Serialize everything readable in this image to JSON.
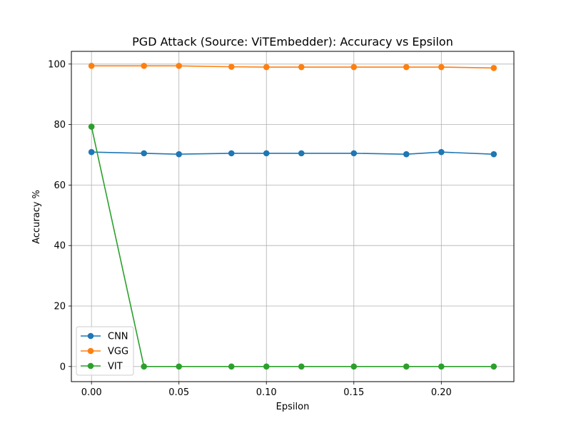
{
  "chart_data": {
    "type": "line",
    "title": "PGD Attack (Source: ViTEmbedder): Accuracy vs Epsilon",
    "xlabel": "Epsilon",
    "ylabel": "Accuracy %",
    "xlim": [
      -0.0115,
      0.2415
    ],
    "ylim": [
      -5,
      104.2
    ],
    "xticks": [
      0.0,
      0.05,
      0.1,
      0.15,
      0.2
    ],
    "xtick_labels": [
      "0.00",
      "0.05",
      "0.10",
      "0.15",
      "0.20"
    ],
    "yticks": [
      0,
      20,
      40,
      60,
      80,
      100
    ],
    "ytick_labels": [
      "0",
      "20",
      "40",
      "60",
      "80",
      "100"
    ],
    "grid": true,
    "legend_position": "lower-left",
    "x": [
      0.0,
      0.03,
      0.05,
      0.08,
      0.1,
      0.12,
      0.15,
      0.18,
      0.2,
      0.23
    ],
    "series": [
      {
        "name": "CNN",
        "color": "#1f77b4",
        "values": [
          70.9,
          70.5,
          70.2,
          70.5,
          70.5,
          70.5,
          70.5,
          70.2,
          70.9,
          70.2
        ]
      },
      {
        "name": "VGG",
        "color": "#ff7f0e",
        "values": [
          99.4,
          99.4,
          99.4,
          99.1,
          99.0,
          99.0,
          99.0,
          99.0,
          99.0,
          98.7
        ]
      },
      {
        "name": "VIT",
        "color": "#2ca02c",
        "values": [
          79.3,
          0.0,
          0.0,
          0.0,
          0.0,
          0.0,
          0.0,
          0.0,
          0.0,
          0.0
        ]
      }
    ]
  }
}
